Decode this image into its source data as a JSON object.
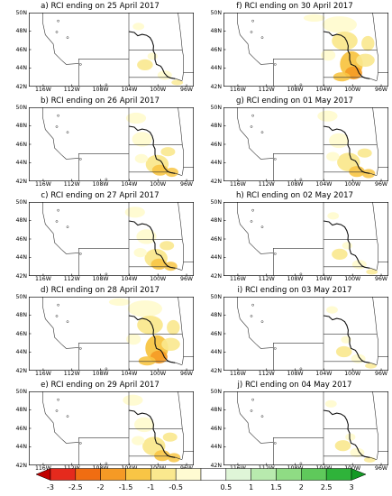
{
  "panels": [
    {
      "title": "a) RCI ending on 25 April 2017",
      "anomaly": "low"
    },
    {
      "title": "f) RCI ending on 30 April 2017",
      "anomaly": "high"
    },
    {
      "title": "b) RCI ending on 26 April 2017",
      "anomaly": "medium"
    },
    {
      "title": "g) RCI ending on 01 May 2017",
      "anomaly": "medium"
    },
    {
      "title": "c) RCI ending on 27 April 2017",
      "anomaly": "medium"
    },
    {
      "title": "h) RCI ending on 02 May 2017",
      "anomaly": "low"
    },
    {
      "title": "d) RCI ending on 28 April 2017",
      "anomaly": "high"
    },
    {
      "title": "i) RCI ending on 03 May 2017",
      "anomaly": "low"
    },
    {
      "title": "e) RCI ending on 29 April 2017",
      "anomaly": "medium"
    },
    {
      "title": "j) RCI ending on 04 May 2017",
      "anomaly": "low"
    }
  ],
  "lat_labels": [
    "50N",
    "48N",
    "46N",
    "44N",
    "42N"
  ],
  "lon_labels": [
    "116W",
    "112W",
    "108W",
    "104W",
    "100W",
    "96W"
  ],
  "colorbar": {
    "ticks": [
      "-3",
      "-2.5",
      "-2",
      "-1.5",
      "-1",
      "-0.5",
      "0.5",
      "1",
      "1.5",
      "2",
      "2.5",
      "3"
    ],
    "colors": [
      "#c00000",
      "#e52a1d",
      "#f06d12",
      "#f59a25",
      "#f8c545",
      "#fae88e",
      "#fffbd2",
      "#ffffff",
      "#dff5d8",
      "#b8eaae",
      "#8fdc84",
      "#5fc95b",
      "#2fb33a",
      "#149a25"
    ]
  }
}
